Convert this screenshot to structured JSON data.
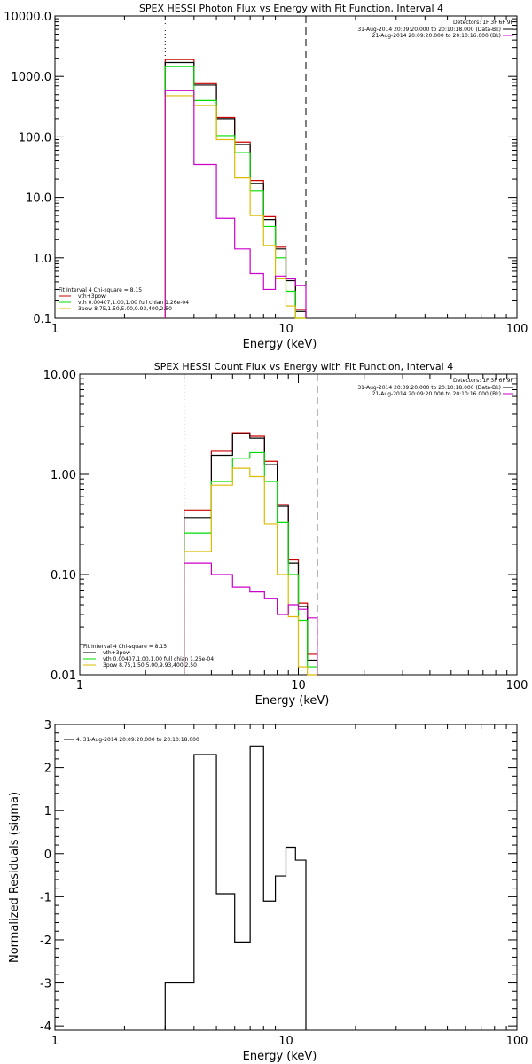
{
  "colors": {
    "total": "#000000",
    "vth_plus_3pow": "#cc0000",
    "vth": "#00dd00",
    "3pow": "#ddbb00",
    "background": "#cc00cc"
  },
  "chart_data": [
    {
      "type": "line",
      "title": "SPEX HESSI Photon Flux vs Energy with Fit Function, Interval 4",
      "xlabel": "Energy (keV)",
      "ylabel": "",
      "xscale": "log",
      "yscale": "log",
      "xlim": [
        1,
        100
      ],
      "ylim": [
        0.1,
        10000
      ],
      "x_tick_labels": [
        "1",
        "10",
        "100"
      ],
      "y_tick_labels": [
        "0.1",
        "1.0",
        "10.0",
        "100.0",
        "1000.0",
        "10000.0"
      ],
      "y_ticks": [
        0.1,
        1,
        10,
        100,
        1000,
        10000
      ],
      "vlines": [
        {
          "x": 3.0,
          "style": "dotted"
        },
        {
          "x": 12.2,
          "style": "dashed"
        }
      ],
      "bin_edges": [
        3.0,
        4.0,
        5.0,
        6.0,
        7.0,
        8.0,
        9.0,
        10.0,
        11.0,
        12.2
      ],
      "series": [
        {
          "name": "vth+3pow",
          "color_key": "vth_plus_3pow",
          "values": [
            1900,
            760,
            210,
            82,
            19,
            4.8,
            1.5,
            0.45,
            0.14
          ]
        },
        {
          "name": "",
          "color_key": "total",
          "values": [
            1700,
            720,
            200,
            75,
            17,
            4.3,
            1.4,
            0.42,
            0.13
          ]
        },
        {
          "name": "vth 0.00407,1.00,1.00 full chian 1.26e-04",
          "color_key": "vth",
          "values": [
            1450,
            400,
            105,
            55,
            13,
            3.3,
            1.0,
            0.28,
            0.09
          ]
        },
        {
          "name": "3pow 8.75,1.50,5.00,9.93,400,2.50",
          "color_key": "3pow",
          "values": [
            480,
            330,
            90,
            21,
            5,
            1.6,
            0.45,
            0.16,
            0.05
          ]
        },
        {
          "name": "",
          "color_key": "background",
          "values": [
            580,
            35,
            4.5,
            1.4,
            0.55,
            0.3,
            0.5,
            0.45,
            0.35
          ]
        }
      ],
      "legend_top_right": {
        "header": "Detectors: 1F 3F 6F 9F",
        "entries": [
          {
            "text": "31-Aug-2014 20:09:20.000 to 20:10:18.000 (Data-Bk)",
            "color_key": "total"
          },
          {
            "text": "21-Aug-2014 20:09:20.000 to 20:10:16.000 (Bk)",
            "color_key": "background"
          }
        ]
      },
      "legend_bottom_left": {
        "header": "Fit Interval  4    Chi-square = 8.15",
        "entries": [
          {
            "text": "vth+3pow",
            "color_key": "vth_plus_3pow"
          },
          {
            "text": "vth 0.00407,1.00,1.00  full chian 1.26e-04",
            "color_key": "vth"
          },
          {
            "text": "3pow 8.75,1.50,5.00,9.93,400,2.50",
            "color_key": "3pow"
          }
        ]
      }
    },
    {
      "type": "line",
      "title": "SPEX HESSI Count Flux vs Energy with Fit Function, Interval 4",
      "xlabel": "Energy (keV)",
      "ylabel": "",
      "xscale": "log",
      "yscale": "log",
      "xlim": [
        1,
        100
      ],
      "ylim": [
        0.01,
        10
      ],
      "x_tick_labels": [
        "1",
        "10",
        "100"
      ],
      "y_tick_labels": [
        "0.01",
        "0.10",
        "1.00",
        "10.00"
      ],
      "y_ticks": [
        0.01,
        0.1,
        1,
        10
      ],
      "vlines": [
        {
          "x": 3.0,
          "style": "dotted"
        },
        {
          "x": 12.2,
          "style": "dashed"
        }
      ],
      "bin_edges": [
        3.0,
        4.0,
        5.0,
        6.0,
        7.0,
        8.0,
        9.0,
        10.0,
        11.0,
        12.2
      ],
      "series": [
        {
          "name": "vth+3pow",
          "color_key": "vth_plus_3pow",
          "values": [
            0.44,
            1.7,
            2.6,
            2.4,
            1.35,
            0.5,
            0.14,
            0.052,
            0.016
          ]
        },
        {
          "name": "",
          "color_key": "total",
          "values": [
            0.37,
            1.55,
            2.55,
            2.3,
            1.25,
            0.48,
            0.13,
            0.048,
            0.014
          ]
        },
        {
          "name": "vth 0.00407,1.00,1.00 full chian 1.26e-04",
          "color_key": "vth",
          "values": [
            0.26,
            0.85,
            1.45,
            1.65,
            0.85,
            0.33,
            0.1,
            0.035,
            0.012
          ]
        },
        {
          "name": "3pow 8.75,1.50,5.00,9.93,400,2.50",
          "color_key": "3pow",
          "values": [
            0.17,
            0.78,
            1.15,
            0.95,
            0.32,
            0.1,
            0.038,
            0.012,
            0.006
          ]
        },
        {
          "name": "",
          "color_key": "background",
          "values": [
            0.13,
            0.1,
            0.075,
            0.067,
            0.058,
            0.04,
            0.05,
            0.045,
            0.037
          ]
        }
      ],
      "legend_top_right": {
        "header": "Detectors: 1F 3F 6F 9F",
        "entries": [
          {
            "text": "31-Aug-2014 20:09:20.000 to 20:10:18.000 (Data-Bk)",
            "color_key": "total"
          },
          {
            "text": "21-Aug-2014 20:09:20.000 to 20:10:16.000 (Bk)",
            "color_key": "background"
          }
        ]
      },
      "legend_bottom_left": {
        "header": "Fit Interval  4    Chi-square = 8.15",
        "entries": [
          {
            "text": "vth+3pow",
            "color_key": "total"
          },
          {
            "text": "vth 0.00407,1.00,1.00  full chian 1.26e-04",
            "color_key": "vth"
          },
          {
            "text": "3pow 8.75,1.50,5.00,9.93,400,2.50",
            "color_key": "3pow"
          }
        ]
      }
    },
    {
      "type": "line",
      "title": "",
      "xlabel": "Energy (keV)",
      "ylabel": "Normalized Residuals (sigma)",
      "xscale": "log",
      "yscale": "linear",
      "xlim": [
        1,
        100
      ],
      "ylim": [
        -4.1,
        3
      ],
      "x_tick_labels": [
        "1",
        "10",
        "100"
      ],
      "y_tick_labels": [
        "-4",
        "-3",
        "-2",
        "-1",
        "0",
        "1",
        "2",
        "3"
      ],
      "y_ticks": [
        -4,
        -3,
        -2,
        -1,
        0,
        1,
        2,
        3
      ],
      "bin_edges": [
        3.0,
        4.0,
        5.0,
        6.0,
        7.0,
        8.0,
        9.0,
        10.0,
        11.0,
        12.2
      ],
      "series": [
        {
          "name": "4. 31-Aug-2014 20:09:20.000 to 20:10:18.000",
          "color_key": "total",
          "values": [
            -3.0,
            2.3,
            -0.93,
            -2.05,
            2.5,
            -1.1,
            -0.52,
            0.15,
            -0.15
          ]
        }
      ],
      "legend_top_left": {
        "entries": [
          {
            "text": "4. 31-Aug-2014 20:09:20.000 to 20:10:18.000",
            "color_key": "total"
          }
        ]
      }
    }
  ]
}
